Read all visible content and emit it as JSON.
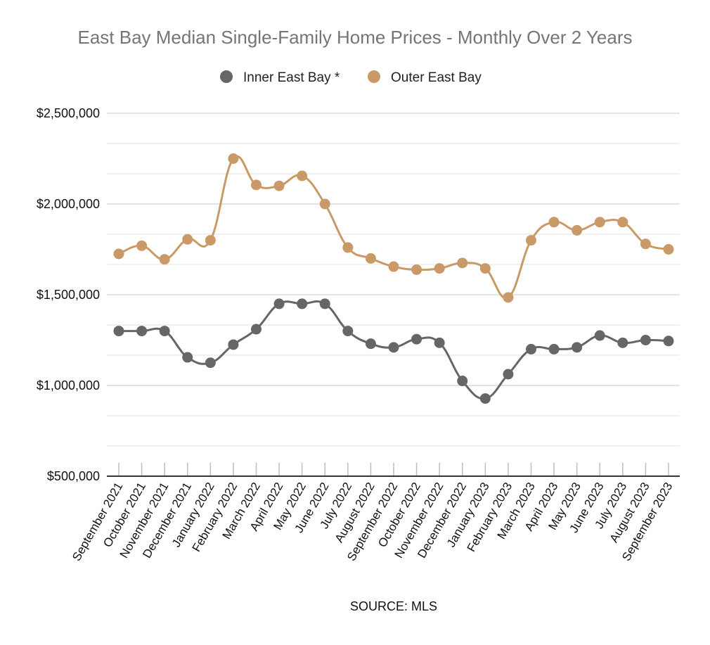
{
  "chart_data": {
    "type": "line",
    "title": "East Bay Median Single-Family Home Prices - Monthly Over 2 Years",
    "source": "SOURCE: MLS",
    "categories": [
      "September 2021",
      "October 2021",
      "November 2021",
      "December 2021",
      "January 2022",
      "February 2022",
      "March 2022",
      "April 2022",
      "May 2022",
      "June 2022",
      "July 2022",
      "August 2022",
      "September 2022",
      "October 2022",
      "November 2022",
      "December 2022",
      "January 2023",
      "February 2023",
      "March 2023",
      "April 2023",
      "May 2023",
      "June 2023",
      "July 2023",
      "August 2023",
      "September 2023"
    ],
    "series": [
      {
        "name": "Inner East Bay *",
        "color": "#666666",
        "values": [
          1300000,
          1300000,
          1300000,
          1155000,
          1125000,
          1225000,
          1310000,
          1450000,
          1450000,
          1450000,
          1300000,
          1230000,
          1210000,
          1255000,
          1235000,
          1025000,
          928000,
          1062000,
          1200000,
          1200000,
          1210000,
          1275000,
          1235000,
          1250000,
          1245000
        ]
      },
      {
        "name": "Outer East Bay",
        "color": "#C99A68",
        "values": [
          1725000,
          1770000,
          1695000,
          1805000,
          1800000,
          2250000,
          2105000,
          2100000,
          2155000,
          2000000,
          1760000,
          1700000,
          1655000,
          1638000,
          1645000,
          1675000,
          1645000,
          1485000,
          1800000,
          1900000,
          1855000,
          1900000,
          1900000,
          1780000,
          1750000
        ]
      }
    ],
    "yticks": [
      "$500,000",
      "$1,000,000",
      "$1,500,000",
      "$2,000,000",
      "$2,500,000"
    ],
    "ylim": [
      500000,
      2500000
    ],
    "grid": true,
    "legend_position": "top-center"
  }
}
